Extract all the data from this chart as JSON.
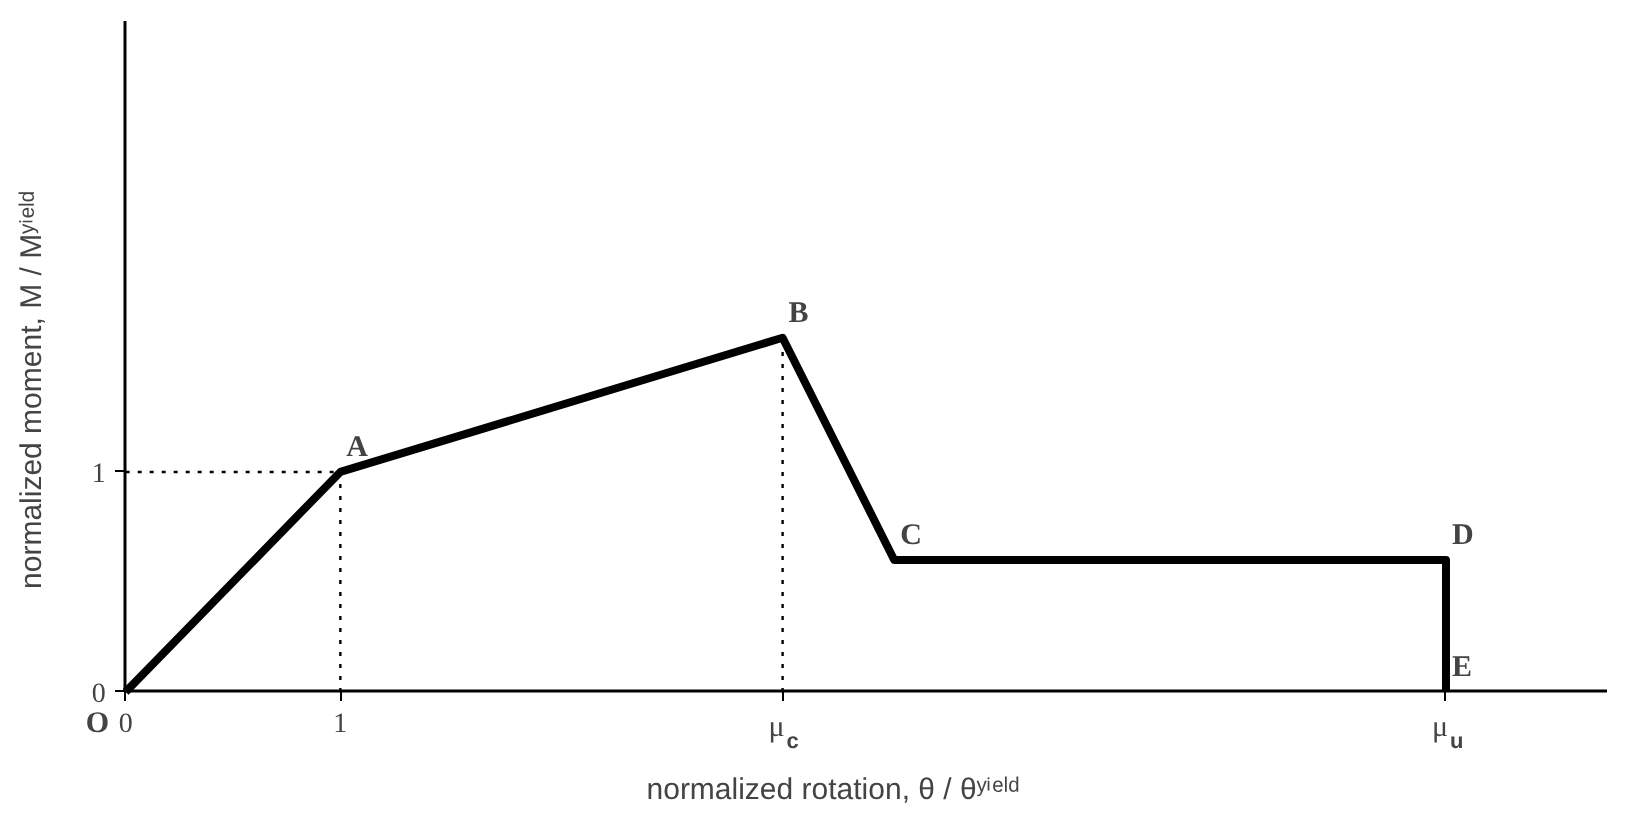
{
  "chart_data": {
    "type": "line",
    "xlabel": "normalized rotation, θ / θʸⁱᵉˡᵈ",
    "ylabel": "normalized moment, M / Mʸⁱᵉˡᵈ",
    "xlim": [
      0,
      6.9
    ],
    "ylim": [
      0,
      3.05
    ],
    "xticks": [
      0,
      1,
      {
        "value": 3.06,
        "label": "μ$_{c}$"
      },
      {
        "value": 6.15,
        "label": "μ$_{u}$"
      }
    ],
    "yticks": [
      0,
      1
    ],
    "grid": false,
    "marker": "none",
    "series": [
      {
        "color": "#000000",
        "line_style": "solid",
        "x": [
          0,
          1,
          3.06,
          3.58,
          6.15,
          6.15
        ],
        "values": [
          0,
          1,
          1.61,
          0.6,
          0.6,
          0
        ]
      },
      {
        "color": "#000000",
        "line_style": "dotted",
        "x": [
          0,
          1
        ],
        "values": [
          1,
          1
        ]
      },
      {
        "color": "#000000",
        "line_style": "dotted",
        "x": [
          1,
          1
        ],
        "values": [
          0,
          1
        ]
      },
      {
        "color": "#000000",
        "line_style": "dotted",
        "x": [
          3.06,
          3.06
        ],
        "values": [
          0,
          1.61
        ]
      }
    ],
    "annotations": [
      {
        "text": "O",
        "x": 0,
        "y": 0
      },
      {
        "text": "A",
        "x": 1,
        "y": 1
      },
      {
        "text": "B",
        "x": 3.06,
        "y": 1.61
      },
      {
        "text": "C",
        "x": 3.58,
        "y": 0.6
      },
      {
        "text": "D",
        "x": 6.15,
        "y": 0.6
      },
      {
        "text": "E",
        "x": 6.15,
        "y": 0
      }
    ]
  }
}
